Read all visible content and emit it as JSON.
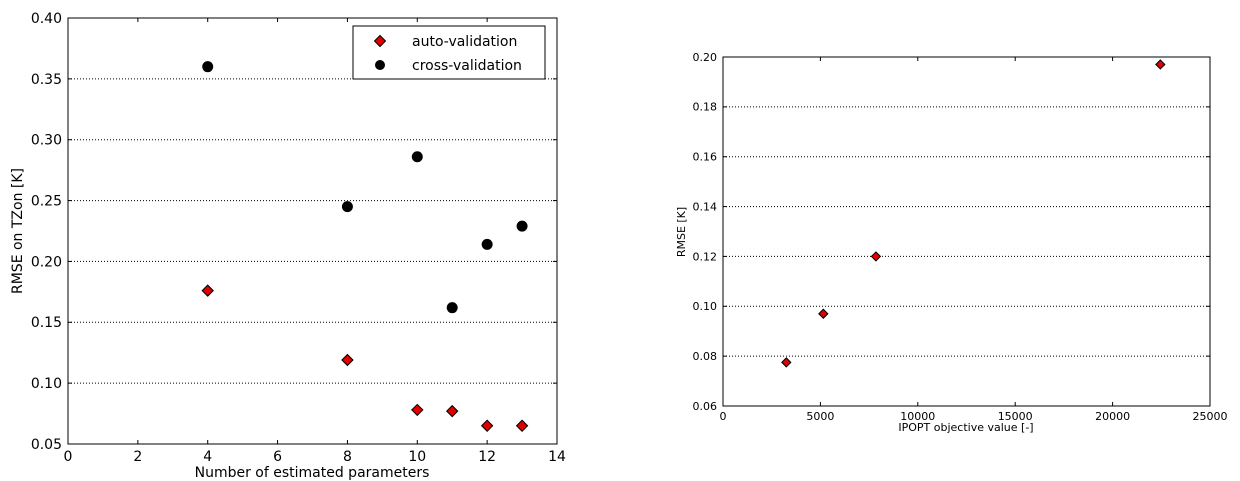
{
  "chart_data": [
    {
      "type": "scatter",
      "title": "",
      "xlabel": "Number of estimated parameters",
      "ylabel": "RMSE on TZon [K]",
      "xlim": [
        0,
        14
      ],
      "ylim": [
        0.05,
        0.4
      ],
      "xticks": [
        "0",
        "2",
        "4",
        "6",
        "8",
        "10",
        "12",
        "14"
      ],
      "yticks": [
        "0.05",
        "0.10",
        "0.15",
        "0.20",
        "0.25",
        "0.30",
        "0.35",
        "0.40"
      ],
      "grid": "horizontal dotted",
      "legend_position": "top-right",
      "series": [
        {
          "name": "auto-validation",
          "marker": "diamond",
          "color": "#e00000",
          "x": [
            4,
            8,
            10,
            11,
            12,
            13
          ],
          "y": [
            0.176,
            0.119,
            0.078,
            0.077,
            0.065,
            0.065
          ]
        },
        {
          "name": "cross-validation",
          "marker": "circle",
          "color": "#000000",
          "x": [
            4,
            8,
            10,
            11,
            12,
            13
          ],
          "y": [
            0.36,
            0.245,
            0.286,
            0.162,
            0.214,
            0.229
          ]
        }
      ]
    },
    {
      "type": "scatter",
      "title": "",
      "xlabel": "IPOPT objective value [-]",
      "ylabel": "RMSE [K]",
      "xlim": [
        0,
        25000
      ],
      "ylim": [
        0.06,
        0.2
      ],
      "xticks": [
        "0",
        "5000",
        "10000",
        "15000",
        "20000",
        "25000"
      ],
      "yticks": [
        "0.06",
        "0.08",
        "0.10",
        "0.12",
        "0.14",
        "0.16",
        "0.18",
        "0.20"
      ],
      "grid": "horizontal dotted",
      "series": [
        {
          "marker": "diamond",
          "color": "#e00000",
          "x": [
            3250,
            5150,
            7850,
            22450
          ],
          "y": [
            0.0775,
            0.097,
            0.12,
            0.197
          ]
        }
      ]
    }
  ]
}
